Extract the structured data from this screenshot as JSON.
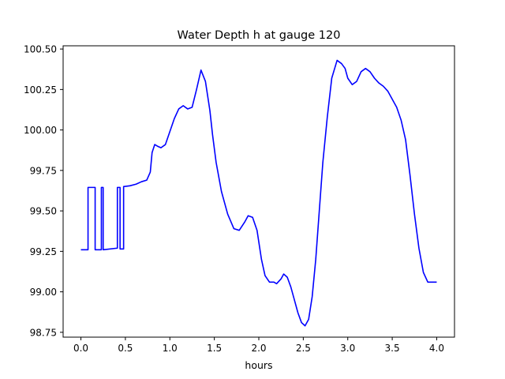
{
  "chart_data": {
    "type": "line",
    "title": "Water Depth h at gauge 120",
    "xlabel": "hours",
    "ylabel": "",
    "xlim": [
      -0.2,
      4.2
    ],
    "ylim": [
      98.72,
      100.52
    ],
    "xticks": [
      0.0,
      0.5,
      1.0,
      1.5,
      2.0,
      2.5,
      3.0,
      3.5,
      4.0
    ],
    "xtick_labels": [
      "0.0",
      "0.5",
      "1.0",
      "1.5",
      "2.0",
      "2.5",
      "3.0",
      "3.5",
      "4.0"
    ],
    "yticks": [
      98.75,
      99.0,
      99.25,
      99.5,
      99.75,
      100.0,
      100.25,
      100.5
    ],
    "ytick_labels": [
      "98.75",
      "99.00",
      "99.25",
      "99.50",
      "99.75",
      "100.00",
      "100.25",
      "100.50"
    ],
    "grid": false,
    "series": [
      {
        "color": "#0000ff",
        "x": [
          0.0,
          0.08,
          0.08,
          0.16,
          0.16,
          0.23,
          0.23,
          0.25,
          0.25,
          0.41,
          0.41,
          0.44,
          0.44,
          0.48,
          0.48,
          0.55,
          0.62,
          0.68,
          0.74,
          0.78,
          0.8,
          0.83,
          0.86,
          0.9,
          0.95,
          1.0,
          1.05,
          1.1,
          1.15,
          1.2,
          1.25,
          1.3,
          1.35,
          1.4,
          1.45,
          1.48,
          1.52,
          1.58,
          1.65,
          1.72,
          1.78,
          1.84,
          1.88,
          1.93,
          1.98,
          2.03,
          2.07,
          2.12,
          2.17,
          2.2,
          2.25,
          2.28,
          2.32,
          2.36,
          2.4,
          2.44,
          2.48,
          2.52,
          2.56,
          2.6,
          2.64,
          2.68,
          2.72,
          2.77,
          2.82,
          2.88,
          2.93,
          2.97,
          3.0,
          3.05,
          3.1,
          3.15,
          3.2,
          3.25,
          3.3,
          3.35,
          3.4,
          3.45,
          3.5,
          3.55,
          3.6,
          3.65,
          3.7,
          3.75,
          3.8,
          3.85,
          3.9,
          3.95,
          4.0
        ],
        "y": [
          99.26,
          99.26,
          99.645,
          99.645,
          99.26,
          99.26,
          99.645,
          99.645,
          99.26,
          99.27,
          99.645,
          99.645,
          99.265,
          99.265,
          99.65,
          99.655,
          99.665,
          99.68,
          99.69,
          99.74,
          99.86,
          99.91,
          99.9,
          99.89,
          99.91,
          99.99,
          100.07,
          100.13,
          100.15,
          100.13,
          100.14,
          100.25,
          100.37,
          100.3,
          100.12,
          99.97,
          99.8,
          99.62,
          99.48,
          99.39,
          99.38,
          99.43,
          99.47,
          99.46,
          99.38,
          99.2,
          99.1,
          99.06,
          99.06,
          99.05,
          99.08,
          99.11,
          99.09,
          99.03,
          98.95,
          98.87,
          98.81,
          98.79,
          98.83,
          98.97,
          99.2,
          99.5,
          99.8,
          100.08,
          100.32,
          100.43,
          100.41,
          100.38,
          100.32,
          100.28,
          100.3,
          100.36,
          100.38,
          100.36,
          100.32,
          100.29,
          100.27,
          100.24,
          100.19,
          100.14,
          100.06,
          99.94,
          99.72,
          99.48,
          99.27,
          99.12,
          99.06,
          99.06,
          99.06
        ]
      }
    ]
  }
}
